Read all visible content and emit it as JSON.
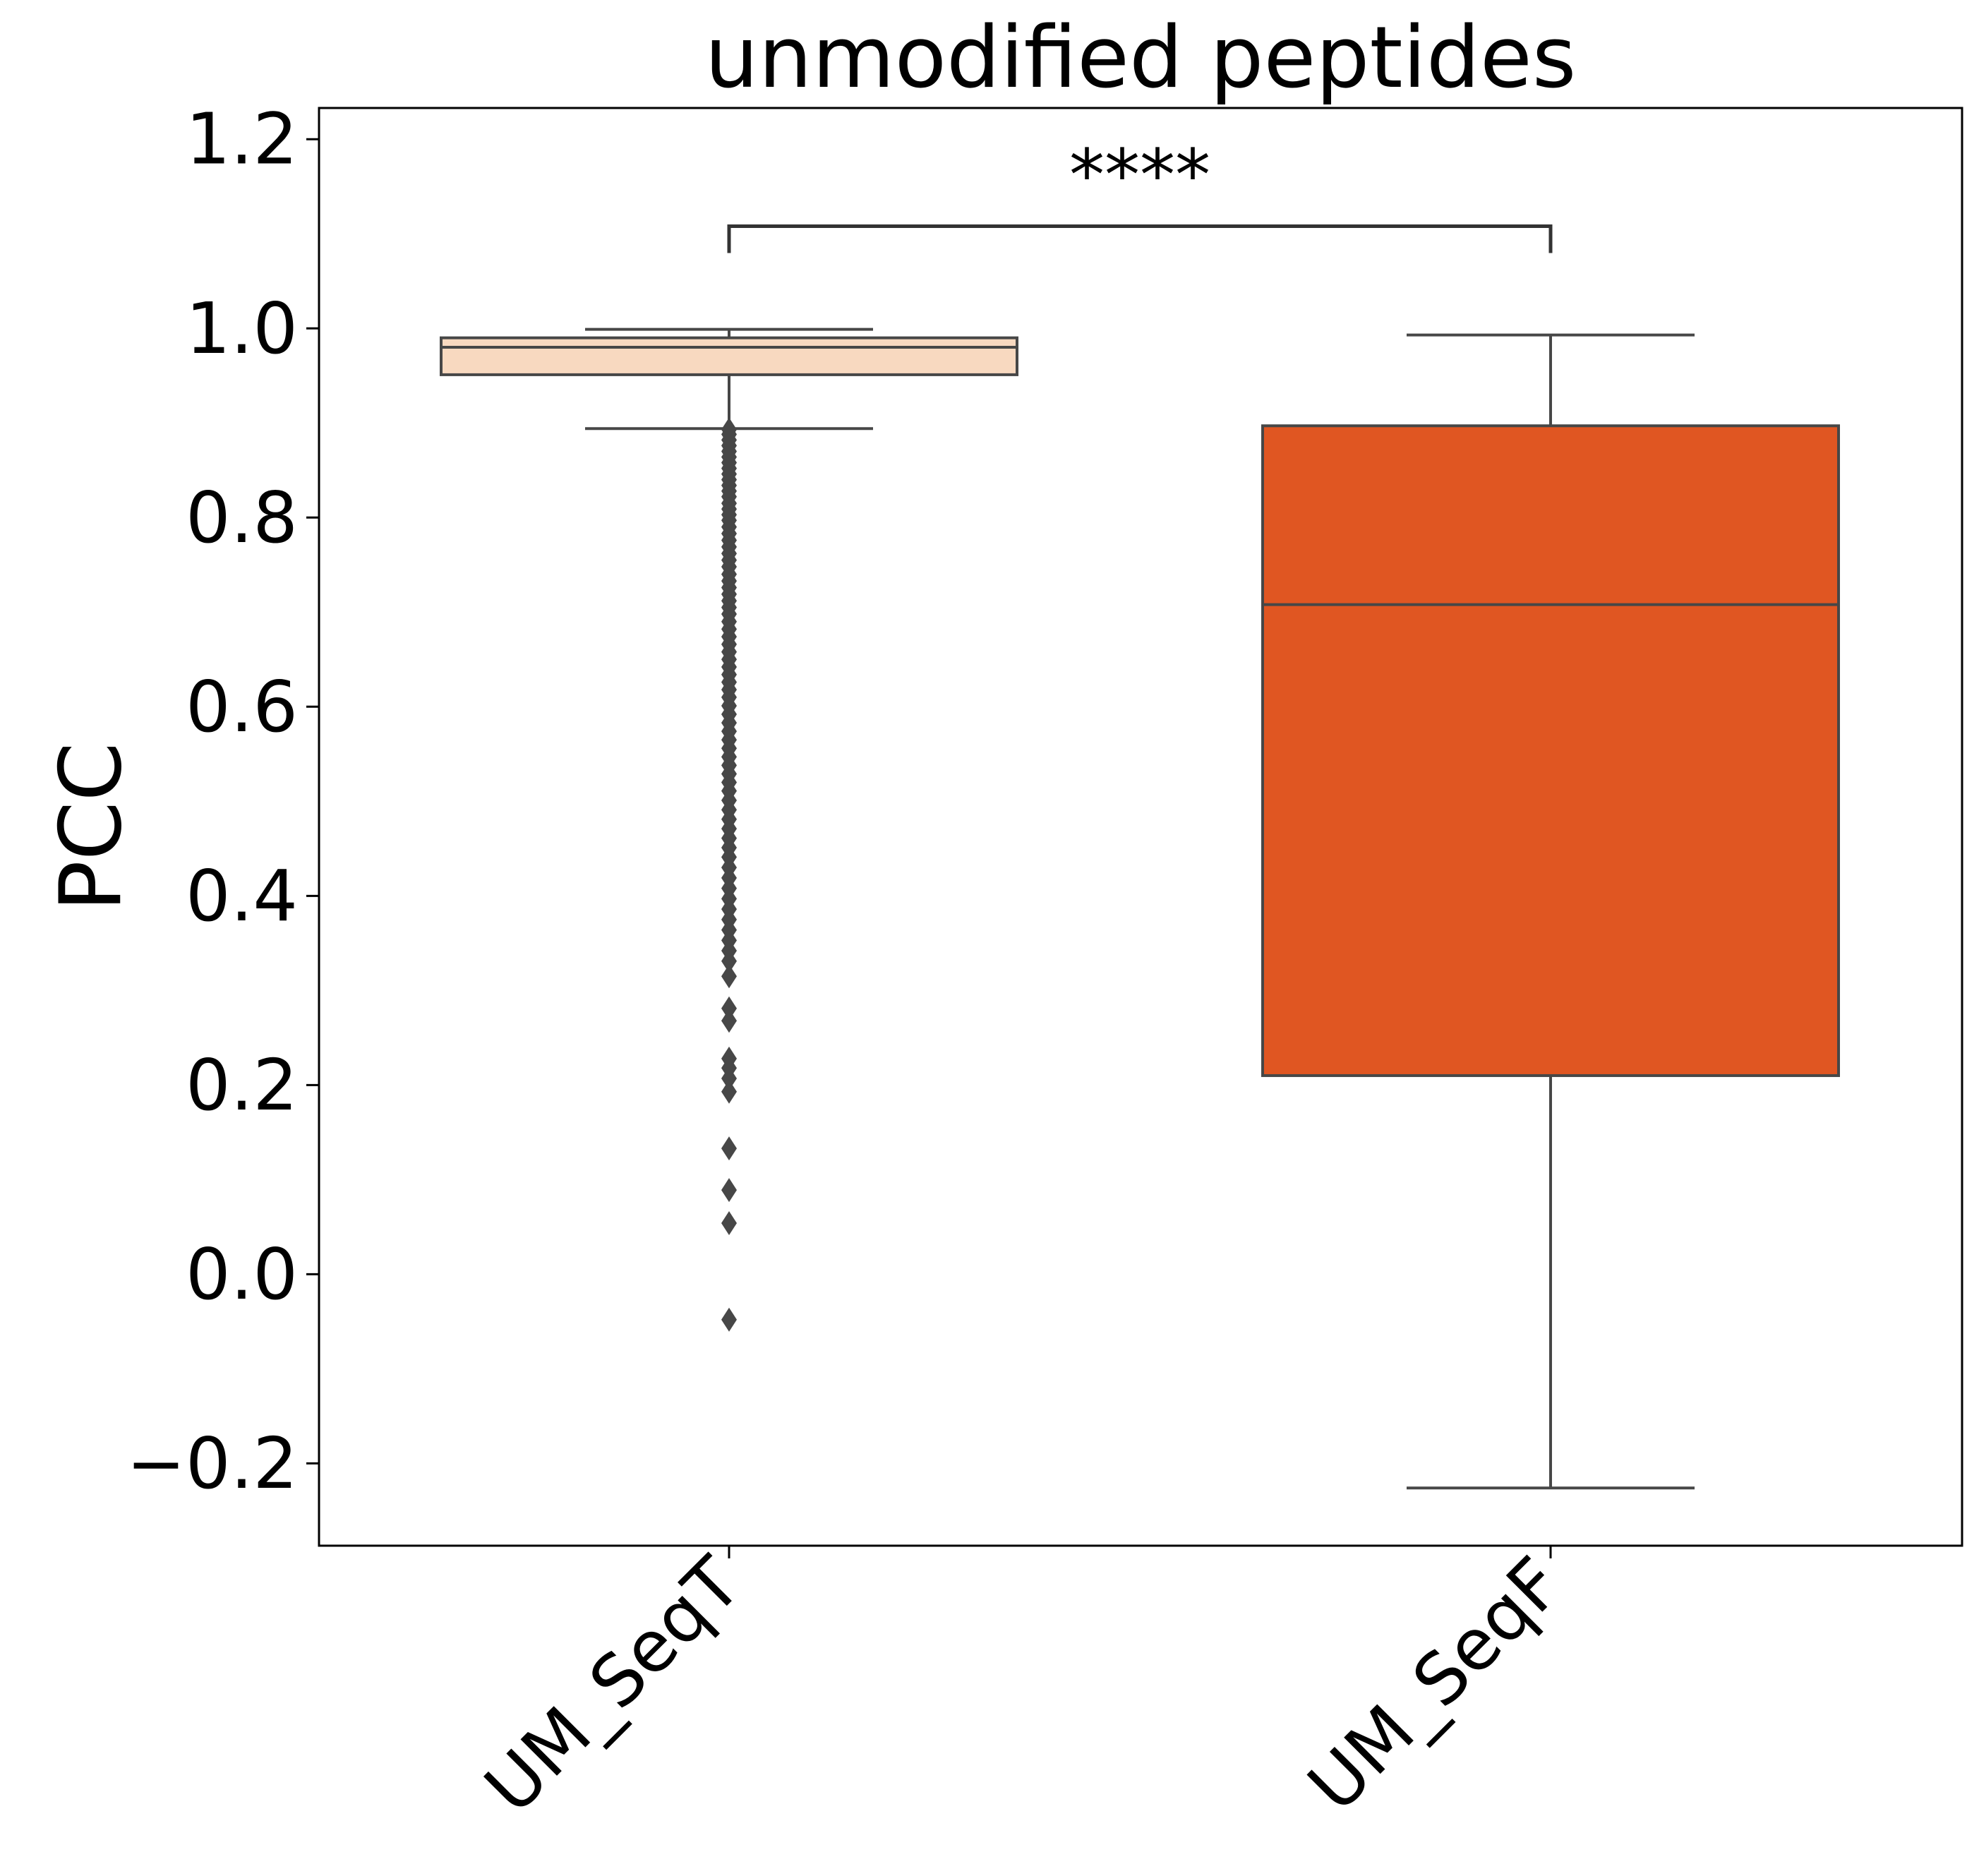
{
  "chart_data": {
    "type": "box",
    "title": "unmodified peptides",
    "xlabel": "",
    "ylabel": "PCC",
    "ylim": [
      -0.287,
      1.233
    ],
    "yticks": [
      -0.2,
      0.0,
      0.2,
      0.4,
      0.6,
      0.8,
      1.0,
      1.2
    ],
    "ytick_labels": [
      "−0.2",
      "0.0",
      "0.2",
      "0.4",
      "0.6",
      "0.8",
      "1.0",
      "1.2"
    ],
    "categories": [
      "UM_SeqT",
      "UM_SeqF"
    ],
    "boxes": [
      {
        "category": "UM_SeqT",
        "color": "#f8d9c0",
        "whisker_low": 0.894,
        "q1": 0.951,
        "median": 0.98,
        "q3": 0.99,
        "whisker_high": 0.999,
        "outliers": [
          0.893,
          0.888,
          0.882,
          0.876,
          0.87,
          0.864,
          0.858,
          0.852,
          0.846,
          0.84,
          0.834,
          0.828,
          0.822,
          0.815,
          0.809,
          0.803,
          0.797,
          0.79,
          0.783,
          0.776,
          0.769,
          0.762,
          0.755,
          0.748,
          0.74,
          0.733,
          0.726,
          0.719,
          0.712,
          0.705,
          0.698,
          0.69,
          0.682,
          0.674,
          0.666,
          0.658,
          0.65,
          0.642,
          0.634,
          0.626,
          0.618,
          0.61,
          0.601,
          0.592,
          0.583,
          0.574,
          0.565,
          0.556,
          0.547,
          0.538,
          0.529,
          0.52,
          0.511,
          0.501,
          0.491,
          0.481,
          0.471,
          0.461,
          0.451,
          0.441,
          0.43,
          0.419,
          0.408,
          0.397,
          0.386,
          0.375,
          0.364,
          0.353,
          0.342,
          0.331,
          0.315,
          0.281,
          0.268,
          0.228,
          0.218,
          0.207,
          0.193,
          0.133,
          0.089,
          0.054,
          -0.048
        ]
      },
      {
        "category": "UM_SeqF",
        "color": "#e05622",
        "whisker_low": -0.226,
        "q1": 0.21,
        "median": 0.708,
        "q3": 0.897,
        "whisker_high": 0.993,
        "outliers": []
      }
    ],
    "annotation": {
      "text": "****",
      "from": "UM_SeqT",
      "to": "UM_SeqF",
      "y": 1.108
    }
  }
}
